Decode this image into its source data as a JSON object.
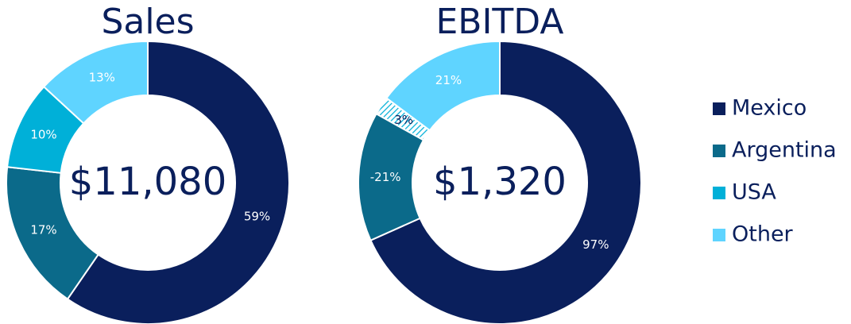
{
  "chart_data": [
    {
      "type": "donut",
      "title": "Sales",
      "center_label": "$11,080",
      "categories": [
        "Mexico",
        "Argentina",
        "USA",
        "Other"
      ],
      "values": [
        59,
        17,
        10,
        13
      ],
      "value_labels": [
        "59%",
        "17%",
        "10%",
        "13%"
      ],
      "colors": [
        "#0a1f5c",
        "#0b6a8a",
        "#00b0d8",
        "#5fd4ff"
      ],
      "hatched": []
    },
    {
      "type": "donut",
      "title": "EBITDA",
      "center_label": "$1,320",
      "categories": [
        "Mexico",
        "Argentina",
        "USA",
        "Other"
      ],
      "values": [
        97,
        -21,
        3,
        21
      ],
      "value_labels": [
        "97%",
        "-21%",
        "3%",
        "21%"
      ],
      "colors": [
        "#0a1f5c",
        "#0b6a8a",
        "#00b0d8",
        "#5fd4ff"
      ],
      "hatched": [
        "USA"
      ]
    }
  ],
  "legend": {
    "position": "right",
    "labels": [
      "Mexico",
      "Argentina",
      "USA",
      "Other"
    ],
    "colors": [
      "#0a1f5c",
      "#0b6a8a",
      "#00b0d8",
      "#5fd4ff"
    ]
  }
}
